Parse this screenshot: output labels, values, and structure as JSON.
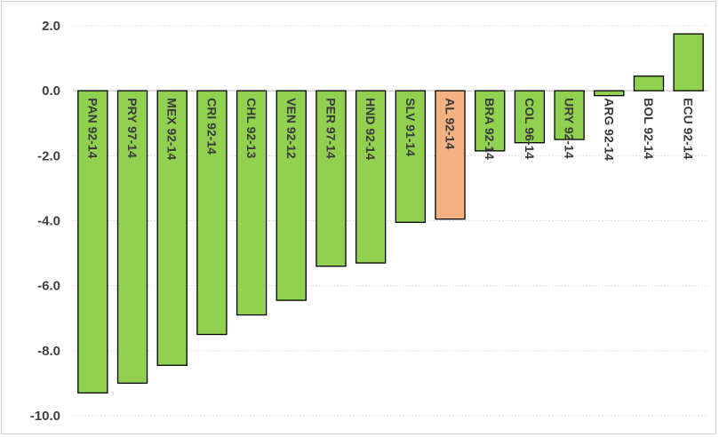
{
  "chart_data": {
    "type": "bar",
    "title": "",
    "xlabel": "",
    "ylabel": "",
    "ylim": [
      -10,
      2
    ],
    "yticks": [
      "2.0",
      "0.0",
      "-2.0",
      "-4.0",
      "-6.0",
      "-8.0",
      "-10.0"
    ],
    "ytick_values": [
      2,
      0,
      -2,
      -4,
      -6,
      -8,
      -10
    ],
    "grid": true,
    "legend": "none",
    "categories": [
      "PAN 92-14",
      "PRY 97-14",
      "MEX 92-14",
      "CRI 92-14",
      "CHL 92-13",
      "VEN 92-12",
      "PER 97-14",
      "HND 92-14",
      "SLV 91-14",
      "AL 92-14",
      "BRA 92-14",
      "COL 96-14",
      "URY 92-14",
      "ARG 92-14",
      "BOL 92-14",
      "ECU 92-14"
    ],
    "values": [
      -9.3,
      -9.0,
      -8.45,
      -7.5,
      -6.9,
      -6.45,
      -5.4,
      -5.3,
      -4.05,
      -3.95,
      -1.85,
      -1.6,
      -1.5,
      -0.15,
      0.45,
      1.75
    ],
    "colors": {
      "default": "#92d050",
      "highlight": "#f4b183",
      "highlight_category": "AL 92-14",
      "outline": "#000000",
      "grid": "#d9d9d9",
      "axis": "#bfbfbf"
    }
  }
}
